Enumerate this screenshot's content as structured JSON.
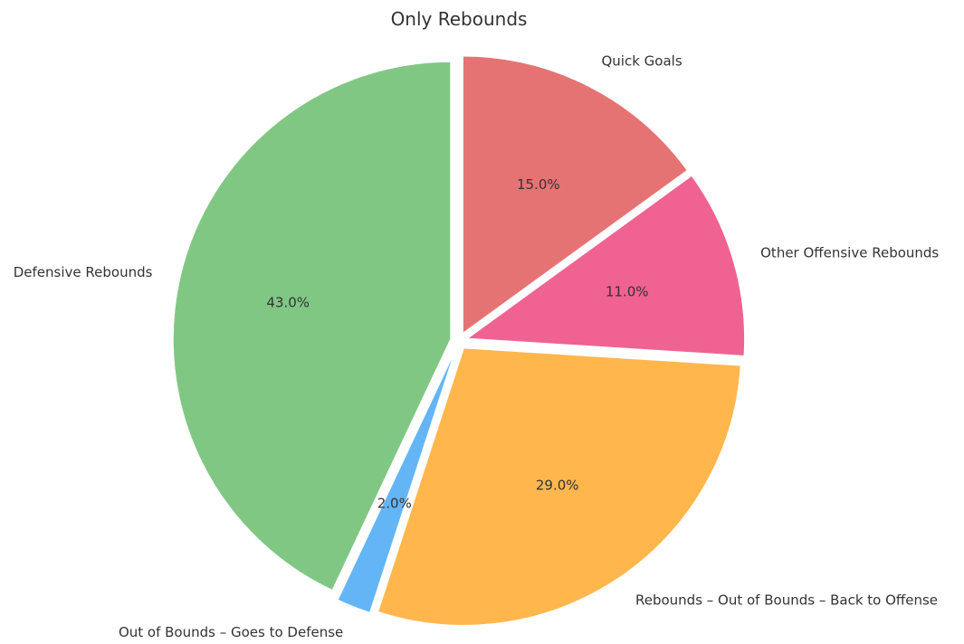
{
  "chart_data": {
    "type": "pie",
    "title": "Only Rebounds",
    "start": "top",
    "direction": "clockwise",
    "exploded": true,
    "slices": [
      {
        "label": "Quick Goals",
        "value": 15.0,
        "pct_label": "15.0%",
        "color": "#e57373"
      },
      {
        "label": "Other Offensive Rebounds",
        "value": 11.0,
        "pct_label": "11.0%",
        "color": "#f06292"
      },
      {
        "label": "Rebounds – Out of Bounds – Back to Offense",
        "value": 29.0,
        "pct_label": "29.0%",
        "color": "#ffb74d"
      },
      {
        "label": "Out of Bounds – Goes to Defense",
        "value": 2.0,
        "pct_label": "2.0%",
        "color": "#64b5f6"
      },
      {
        "label": "Defensive Rebounds",
        "value": 43.0,
        "pct_label": "43.0%",
        "color": "#81c784"
      }
    ]
  }
}
